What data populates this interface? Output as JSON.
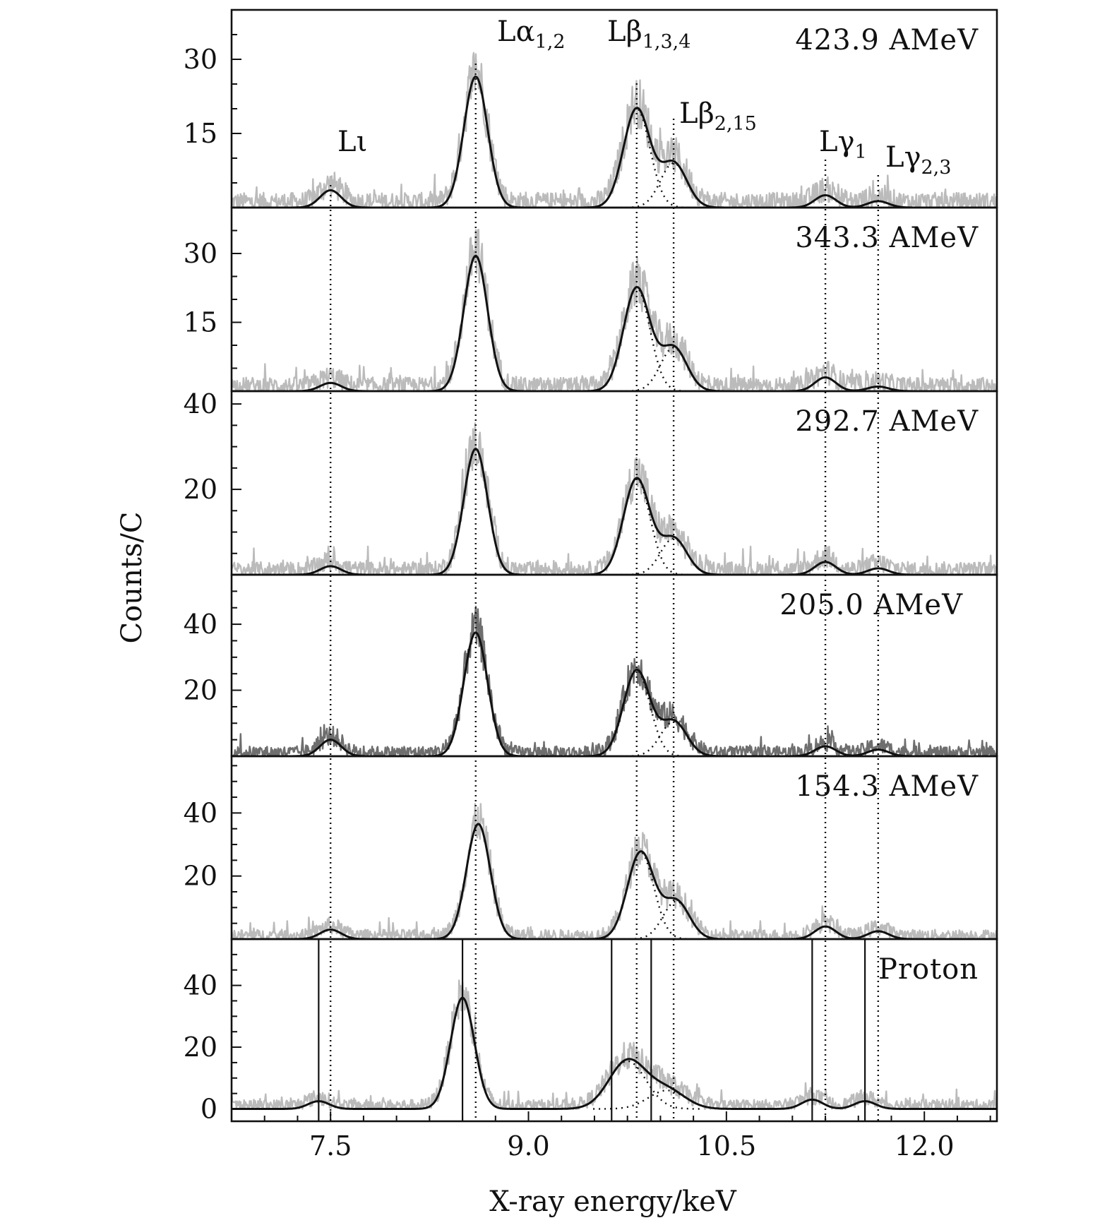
{
  "chart_data": {
    "type": "line",
    "xlabel": "X-ray energy/keV",
    "ylabel": "Counts/C",
    "xlim": [
      6.75,
      12.55
    ],
    "x_ticks": [
      {
        "value": 7.5,
        "label": "7.5"
      },
      {
        "value": 9.0,
        "label": "9.0"
      },
      {
        "value": 10.5,
        "label": "10.5"
      },
      {
        "value": 12.0,
        "label": "12.0"
      }
    ],
    "x_minor_step": 0.25,
    "peak_labels": [
      {
        "base": "L",
        "greek": "ι",
        "sub": "",
        "energy": 7.5
      },
      {
        "base": "L",
        "greek": "α",
        "sub": "1,2",
        "energy": 8.6
      },
      {
        "base": "L",
        "greek": "β",
        "sub": "1,3,4",
        "energy": 9.8
      },
      {
        "base": "L",
        "greek": "β",
        "sub": "2,15",
        "energy": 10.2
      },
      {
        "base": "L",
        "greek": "γ",
        "sub": "1",
        "energy": 11.25
      },
      {
        "base": "L",
        "greek": "γ",
        "sub": "2,3",
        "energy": 11.75
      }
    ],
    "dotted_reference_energies": [
      7.5,
      8.6,
      9.82,
      10.1,
      11.25,
      11.65
    ],
    "panels": [
      {
        "label": "423.9 AMeV",
        "ylim": [
          0,
          40
        ],
        "yticks": [
          15,
          30
        ],
        "y_minor_step": 5,
        "data_color": "#bbbbbb",
        "peaks": [
          {
            "energy": 7.5,
            "height": 3.5,
            "sigma": 0.08
          },
          {
            "energy": 8.6,
            "height": 26.5,
            "sigma": 0.09
          },
          {
            "energy": 9.82,
            "height": 20.0,
            "sigma": 0.1
          },
          {
            "energy": 10.1,
            "height": 9.0,
            "sigma": 0.1
          },
          {
            "energy": 11.25,
            "height": 2.5,
            "sigma": 0.08
          },
          {
            "energy": 11.65,
            "height": 1.3,
            "sigma": 0.08
          }
        ],
        "vertical_lines": []
      },
      {
        "label": "343.3 AMeV",
        "ylim": [
          0,
          40
        ],
        "yticks": [
          15,
          30
        ],
        "y_minor_step": 5,
        "data_color": "#bbbbbb",
        "peaks": [
          {
            "energy": 7.5,
            "height": 1.8,
            "sigma": 0.08
          },
          {
            "energy": 8.6,
            "height": 29.5,
            "sigma": 0.09
          },
          {
            "energy": 9.82,
            "height": 22.5,
            "sigma": 0.1
          },
          {
            "energy": 10.1,
            "height": 9.5,
            "sigma": 0.1
          },
          {
            "energy": 11.25,
            "height": 3.0,
            "sigma": 0.08
          },
          {
            "energy": 11.65,
            "height": 1.0,
            "sigma": 0.08
          }
        ],
        "vertical_lines": []
      },
      {
        "label": "292.7 AMeV",
        "ylim": [
          0,
          43
        ],
        "yticks": [
          20,
          40
        ],
        "y_minor_step": 5,
        "data_color": "#bbbbbb",
        "peaks": [
          {
            "energy": 7.5,
            "height": 2.0,
            "sigma": 0.08
          },
          {
            "energy": 8.6,
            "height": 29.5,
            "sigma": 0.09
          },
          {
            "energy": 9.82,
            "height": 22.5,
            "sigma": 0.1
          },
          {
            "energy": 10.1,
            "height": 8.5,
            "sigma": 0.1
          },
          {
            "energy": 11.25,
            "height": 3.0,
            "sigma": 0.08
          },
          {
            "energy": 11.65,
            "height": 1.5,
            "sigma": 0.08
          }
        ],
        "vertical_lines": []
      },
      {
        "label": "205.0 AMeV",
        "ylim": [
          0,
          55
        ],
        "yticks": [
          20,
          40
        ],
        "y_minor_step": 5,
        "data_color": "#6e6e6e",
        "peaks": [
          {
            "energy": 7.5,
            "height": 5.0,
            "sigma": 0.08
          },
          {
            "energy": 8.6,
            "height": 37.5,
            "sigma": 0.09
          },
          {
            "energy": 9.82,
            "height": 26.0,
            "sigma": 0.1
          },
          {
            "energy": 10.1,
            "height": 10.5,
            "sigma": 0.1
          },
          {
            "energy": 11.25,
            "height": 3.0,
            "sigma": 0.08
          },
          {
            "energy": 11.65,
            "height": 2.0,
            "sigma": 0.08
          }
        ],
        "vertical_lines": []
      },
      {
        "label": "154.3 AMeV",
        "ylim": [
          0,
          58
        ],
        "yticks": [
          20,
          40
        ],
        "y_minor_step": 5,
        "data_color": "#bbbbbb",
        "peaks": [
          {
            "energy": 7.5,
            "height": 3.0,
            "sigma": 0.08
          },
          {
            "energy": 8.62,
            "height": 36.5,
            "sigma": 0.09
          },
          {
            "energy": 9.85,
            "height": 27.5,
            "sigma": 0.1
          },
          {
            "energy": 10.12,
            "height": 12.0,
            "sigma": 0.1
          },
          {
            "energy": 11.25,
            "height": 4.0,
            "sigma": 0.08
          },
          {
            "energy": 11.65,
            "height": 2.5,
            "sigma": 0.08
          }
        ],
        "vertical_lines": []
      },
      {
        "label": "Proton",
        "ylim": [
          -4,
          55
        ],
        "yticks": [
          0,
          20,
          40
        ],
        "y_minor_step": 5,
        "data_color": "#bbbbbb",
        "peaks": [
          {
            "energy": 7.41,
            "height": 2.5,
            "sigma": 0.08
          },
          {
            "energy": 8.5,
            "height": 36.0,
            "sigma": 0.09
          },
          {
            "energy": 9.75,
            "height": 15.5,
            "sigma": 0.14
          },
          {
            "energy": 10.05,
            "height": 6.0,
            "sigma": 0.14
          },
          {
            "energy": 11.15,
            "height": 3.0,
            "sigma": 0.08
          },
          {
            "energy": 11.55,
            "height": 2.5,
            "sigma": 0.08
          }
        ],
        "vertical_lines": [
          7.41,
          8.5,
          9.63,
          9.93,
          11.15,
          11.55
        ]
      }
    ]
  }
}
